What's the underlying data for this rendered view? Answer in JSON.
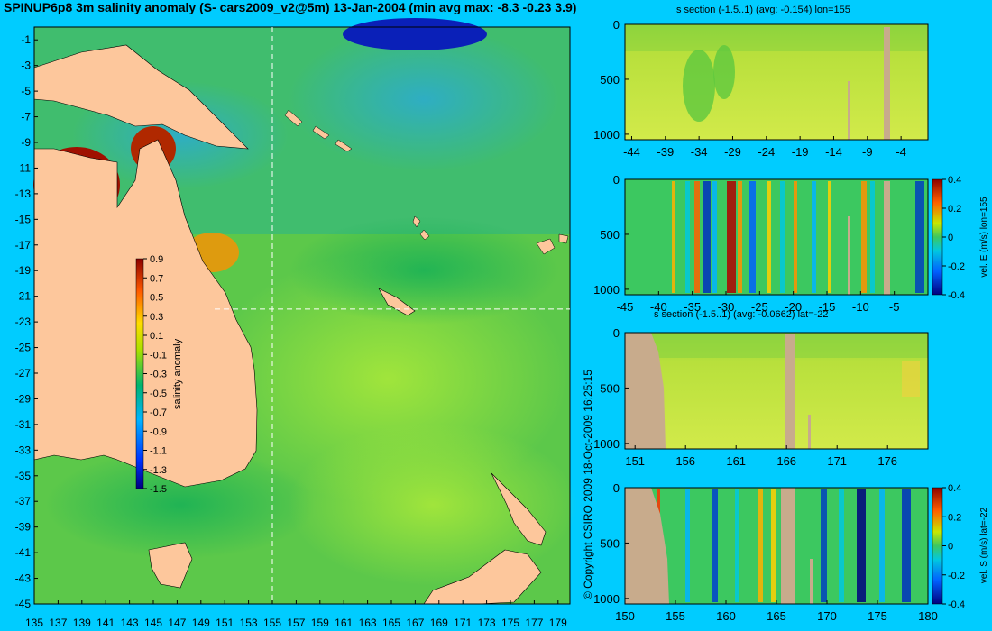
{
  "title": "SPINUP6p8 3m salinity anomaly (S- cars2009_v2@5m) 13-Jan-2004 (min avg max: -8.3 -0.23 3.9)",
  "copyright": "© Copyright CSIRO 2009  18-Oct-2009 16:25:15",
  "colors": {
    "background": "#00ccff",
    "land_map": "#fdc79c",
    "land_section": "#c8ab8c",
    "crosshair": "#ffffff"
  },
  "chart_data": [
    {
      "type": "heatmap",
      "id": "map",
      "title": "SPINUP6p8 3m salinity anomaly (S- cars2009_v2@5m) 13-Jan-2004 (min avg max: -8.3 -0.23 3.9)",
      "xlim": [
        135,
        180
      ],
      "ylim": [
        -45,
        0
      ],
      "x_ticks": [
        "135",
        "137",
        "139",
        "141",
        "143",
        "145",
        "147",
        "149",
        "151",
        "153",
        "155",
        "157",
        "159",
        "161",
        "163",
        "165",
        "167",
        "169",
        "171",
        "173",
        "175",
        "177",
        "179"
      ],
      "y_ticks": [
        "-1",
        "-3",
        "-5",
        "-7",
        "-9",
        "-11",
        "-13",
        "-15",
        "-17",
        "-19",
        "-21",
        "-23",
        "-25",
        "-27",
        "-29",
        "-31",
        "-33",
        "-35",
        "-37",
        "-39",
        "-41",
        "-43",
        "-45"
      ],
      "crosshair": {
        "lon": 155,
        "lat": -22
      },
      "colorbar": {
        "label": "salinity anomaly",
        "range": [
          -1.5,
          0.9
        ],
        "ticks": [
          "0.9",
          "0.7",
          "0.5",
          "0.3",
          "0.1",
          "-0.1",
          "-0.3",
          "-0.5",
          "-0.7",
          "-0.9",
          "-1.1",
          "-1.3",
          "-1.5"
        ]
      }
    },
    {
      "type": "heatmap",
      "id": "s_lon",
      "title": "s section (-1.5..1) (avg: -0.154) lon=155",
      "xlim": [
        -45,
        0
      ],
      "ylim": [
        1050,
        0
      ],
      "x_ticks": [
        "-44",
        "-39",
        "-34",
        "-29",
        "-24",
        "-19",
        "-14",
        "-9",
        "-4"
      ],
      "y_ticks": [
        "0",
        "500",
        "1000"
      ]
    },
    {
      "type": "heatmap",
      "id": "u_lon",
      "title": "",
      "xlim": [
        -45,
        0
      ],
      "ylim": [
        1050,
        0
      ],
      "x_ticks": [
        "-45",
        "-40",
        "-35",
        "-30",
        "-25",
        "-20",
        "-15",
        "-10",
        "-5"
      ],
      "y_ticks": [
        "0",
        "500",
        "1000"
      ],
      "colorbar": {
        "label": "vel. E (m/s) lon=155",
        "range": [
          -0.4,
          0.4
        ],
        "ticks": [
          "0.4",
          "0.2",
          "0",
          "-0.2",
          "-0.4"
        ]
      }
    },
    {
      "type": "heatmap",
      "id": "s_lat",
      "title": "s section (-1.5..1) (avg: -0.0662) lat=-22",
      "xlim": [
        150,
        180
      ],
      "ylim": [
        1050,
        0
      ],
      "x_ticks": [
        "151",
        "156",
        "161",
        "166",
        "171",
        "176"
      ],
      "y_ticks": [
        "0",
        "500",
        "1000"
      ]
    },
    {
      "type": "heatmap",
      "id": "v_lat",
      "title": "",
      "xlim": [
        150,
        180
      ],
      "ylim": [
        1050,
        0
      ],
      "x_ticks": [
        "150",
        "155",
        "160",
        "165",
        "170",
        "175",
        "180"
      ],
      "y_ticks": [
        "0",
        "500",
        "1000"
      ],
      "colorbar": {
        "label": "vel. S (m/s) lat=-22",
        "range": [
          -0.4,
          0.4
        ],
        "ticks": [
          "0.4",
          "0.2",
          "0",
          "-0.2",
          "-0.4"
        ]
      }
    }
  ]
}
